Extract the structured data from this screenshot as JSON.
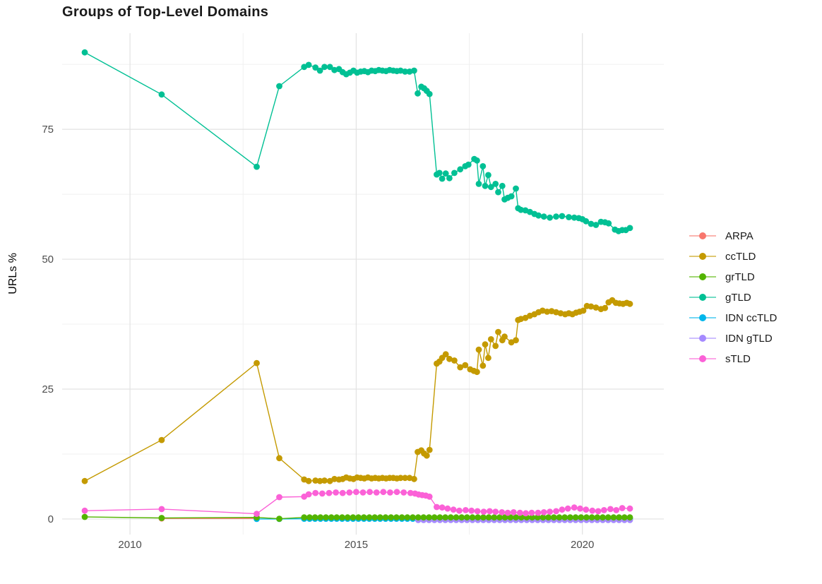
{
  "title": "Groups of Top-Level Domains",
  "colors": {
    "background": "#ffffff",
    "grid_major": "#e2e2e2",
    "grid_minor": "#f0f0f0",
    "tick_text": "#4d4d4d",
    "title_text": "#1a1a1a"
  },
  "chart_data": {
    "type": "line",
    "title": "Groups of Top-Level Domains",
    "xlabel": "",
    "ylabel": "URLs %",
    "xlim": [
      2008.5,
      2021.8
    ],
    "ylim": [
      -3,
      93.5
    ],
    "x_ticks": [
      {
        "value": 2010,
        "label": "2010"
      },
      {
        "value": 2015,
        "label": "2015"
      },
      {
        "value": 2020,
        "label": "2020"
      }
    ],
    "y_ticks": [
      {
        "value": 0,
        "label": "0"
      },
      {
        "value": 25,
        "label": "25"
      },
      {
        "value": 50,
        "label": "50"
      },
      {
        "value": 75,
        "label": "75"
      }
    ],
    "x_minor": [
      2012.5,
      2017.5
    ],
    "y_minor": [
      12.5,
      37.5,
      62.5,
      87.5
    ],
    "grid": true,
    "legend_position": "right",
    "marker_radius": 4.4,
    "line_width": 1.4,
    "draw_order": [
      "ARPA",
      "IDN ccTLD",
      "IDN gTLD",
      "ccTLD",
      "grTLD",
      "gTLD",
      "sTLD"
    ],
    "series": [
      {
        "name": "ARPA",
        "color": "#F8766D",
        "points": [
          [
            2010.7,
            0.1
          ],
          [
            2012.8,
            0.1
          ]
        ]
      },
      {
        "name": "ccTLD",
        "color": "#C49A00",
        "points": [
          [
            2009.0,
            7.3
          ],
          [
            2010.7,
            15.2
          ],
          [
            2012.8,
            30.0
          ],
          [
            2013.3,
            11.7
          ],
          [
            2013.85,
            7.6
          ],
          [
            2013.95,
            7.3
          ],
          [
            2014.1,
            7.4
          ],
          [
            2014.2,
            7.3
          ],
          [
            2014.3,
            7.4
          ],
          [
            2014.42,
            7.3
          ],
          [
            2014.52,
            7.7
          ],
          [
            2014.62,
            7.6
          ],
          [
            2014.7,
            7.7
          ],
          [
            2014.78,
            8.0
          ],
          [
            2014.86,
            7.8
          ],
          [
            2014.94,
            7.7
          ],
          [
            2015.02,
            8.0
          ],
          [
            2015.1,
            7.9
          ],
          [
            2015.18,
            7.8
          ],
          [
            2015.26,
            8.0
          ],
          [
            2015.34,
            7.8
          ],
          [
            2015.42,
            7.9
          ],
          [
            2015.5,
            7.8
          ],
          [
            2015.58,
            7.9
          ],
          [
            2015.66,
            7.8
          ],
          [
            2015.74,
            7.9
          ],
          [
            2015.82,
            7.9
          ],
          [
            2015.9,
            7.8
          ],
          [
            2015.98,
            7.9
          ],
          [
            2016.08,
            7.9
          ],
          [
            2016.18,
            7.9
          ],
          [
            2016.28,
            7.7
          ],
          [
            2016.36,
            12.9
          ],
          [
            2016.44,
            13.2
          ],
          [
            2016.5,
            12.6
          ],
          [
            2016.56,
            12.2
          ],
          [
            2016.62,
            13.3
          ],
          [
            2016.78,
            29.9
          ],
          [
            2016.84,
            30.3
          ],
          [
            2016.9,
            31.0
          ],
          [
            2016.98,
            31.7
          ],
          [
            2017.06,
            30.8
          ],
          [
            2017.17,
            30.5
          ],
          [
            2017.3,
            29.2
          ],
          [
            2017.41,
            29.6
          ],
          [
            2017.52,
            28.8
          ],
          [
            2017.6,
            28.5
          ],
          [
            2017.67,
            28.3
          ],
          [
            2017.71,
            32.6
          ],
          [
            2017.8,
            29.5
          ],
          [
            2017.85,
            33.6
          ],
          [
            2017.92,
            31.0
          ],
          [
            2017.98,
            34.6
          ],
          [
            2018.08,
            33.3
          ],
          [
            2018.14,
            36.0
          ],
          [
            2018.23,
            34.4
          ],
          [
            2018.28,
            35.1
          ],
          [
            2018.43,
            34.0
          ],
          [
            2018.53,
            34.4
          ],
          [
            2018.58,
            38.3
          ],
          [
            2018.64,
            38.5
          ],
          [
            2018.74,
            38.7
          ],
          [
            2018.84,
            39.1
          ],
          [
            2018.94,
            39.4
          ],
          [
            2019.03,
            39.8
          ],
          [
            2019.12,
            40.1
          ],
          [
            2019.22,
            39.9
          ],
          [
            2019.32,
            40.0
          ],
          [
            2019.42,
            39.8
          ],
          [
            2019.52,
            39.6
          ],
          [
            2019.62,
            39.4
          ],
          [
            2019.7,
            39.6
          ],
          [
            2019.78,
            39.4
          ],
          [
            2019.86,
            39.7
          ],
          [
            2019.94,
            39.9
          ],
          [
            2020.02,
            40.1
          ],
          [
            2020.1,
            41.0
          ],
          [
            2020.19,
            40.9
          ],
          [
            2020.3,
            40.7
          ],
          [
            2020.41,
            40.4
          ],
          [
            2020.5,
            40.6
          ],
          [
            2020.58,
            41.7
          ],
          [
            2020.66,
            42.1
          ],
          [
            2020.74,
            41.6
          ],
          [
            2020.82,
            41.5
          ],
          [
            2020.9,
            41.4
          ],
          [
            2020.98,
            41.6
          ],
          [
            2021.05,
            41.4
          ]
        ]
      },
      {
        "name": "grTLD",
        "color": "#53B400",
        "points": [
          [
            2009.0,
            0.4
          ],
          [
            2010.7,
            0.2
          ],
          [
            2012.8,
            0.3
          ],
          [
            2013.3,
            0.05
          ]
        ],
        "run": {
          "from": 2013.85,
          "to": 2021.05,
          "step": 0.12,
          "value": 0.3
        }
      },
      {
        "name": "gTLD",
        "color": "#00C094",
        "points": [
          [
            2009.0,
            89.8
          ],
          [
            2010.7,
            81.7
          ],
          [
            2012.8,
            67.8
          ],
          [
            2013.3,
            83.3
          ],
          [
            2013.85,
            87.0
          ],
          [
            2013.95,
            87.4
          ],
          [
            2014.1,
            86.9
          ],
          [
            2014.2,
            86.3
          ],
          [
            2014.3,
            87.0
          ],
          [
            2014.42,
            87.0
          ],
          [
            2014.52,
            86.4
          ],
          [
            2014.62,
            86.6
          ],
          [
            2014.7,
            86.0
          ],
          [
            2014.78,
            85.6
          ],
          [
            2014.86,
            85.9
          ],
          [
            2014.94,
            86.3
          ],
          [
            2015.02,
            85.9
          ],
          [
            2015.1,
            86.1
          ],
          [
            2015.18,
            86.2
          ],
          [
            2015.26,
            86.0
          ],
          [
            2015.34,
            86.3
          ],
          [
            2015.42,
            86.2
          ],
          [
            2015.5,
            86.4
          ],
          [
            2015.58,
            86.3
          ],
          [
            2015.66,
            86.2
          ],
          [
            2015.74,
            86.4
          ],
          [
            2015.82,
            86.3
          ],
          [
            2015.9,
            86.2
          ],
          [
            2015.98,
            86.3
          ],
          [
            2016.08,
            86.1
          ],
          [
            2016.18,
            86.1
          ],
          [
            2016.28,
            86.3
          ],
          [
            2016.36,
            81.9
          ],
          [
            2016.44,
            83.2
          ],
          [
            2016.5,
            82.9
          ],
          [
            2016.56,
            82.4
          ],
          [
            2016.62,
            81.8
          ],
          [
            2016.78,
            66.3
          ],
          [
            2016.84,
            66.6
          ],
          [
            2016.9,
            65.5
          ],
          [
            2016.98,
            66.5
          ],
          [
            2017.06,
            65.6
          ],
          [
            2017.17,
            66.6
          ],
          [
            2017.3,
            67.3
          ],
          [
            2017.41,
            67.9
          ],
          [
            2017.48,
            68.2
          ],
          [
            2017.61,
            69.3
          ],
          [
            2017.67,
            69.0
          ],
          [
            2017.71,
            64.5
          ],
          [
            2017.8,
            67.9
          ],
          [
            2017.85,
            64.1
          ],
          [
            2017.92,
            66.2
          ],
          [
            2017.98,
            63.9
          ],
          [
            2018.08,
            64.5
          ],
          [
            2018.14,
            62.9
          ],
          [
            2018.23,
            64.1
          ],
          [
            2018.28,
            61.5
          ],
          [
            2018.35,
            61.8
          ],
          [
            2018.43,
            62.1
          ],
          [
            2018.53,
            63.6
          ],
          [
            2018.58,
            59.8
          ],
          [
            2018.64,
            59.5
          ],
          [
            2018.74,
            59.4
          ],
          [
            2018.84,
            59.1
          ],
          [
            2018.94,
            58.7
          ],
          [
            2019.03,
            58.4
          ],
          [
            2019.15,
            58.2
          ],
          [
            2019.28,
            58.0
          ],
          [
            2019.42,
            58.2
          ],
          [
            2019.55,
            58.3
          ],
          [
            2019.7,
            58.1
          ],
          [
            2019.82,
            58.0
          ],
          [
            2019.92,
            57.9
          ],
          [
            2020.0,
            57.7
          ],
          [
            2020.08,
            57.3
          ],
          [
            2020.19,
            56.8
          ],
          [
            2020.3,
            56.6
          ],
          [
            2020.41,
            57.2
          ],
          [
            2020.5,
            57.1
          ],
          [
            2020.58,
            56.9
          ],
          [
            2020.72,
            55.7
          ],
          [
            2020.8,
            55.4
          ],
          [
            2020.88,
            55.6
          ],
          [
            2020.96,
            55.6
          ],
          [
            2021.05,
            56.0
          ]
        ]
      },
      {
        "name": "IDN ccTLD",
        "color": "#00B6EB",
        "points": [
          [
            2012.8,
            0.0
          ],
          [
            2013.3,
            0.0
          ]
        ],
        "run": {
          "from": 2013.85,
          "to": 2021.05,
          "step": 0.12,
          "value": 0.05
        }
      },
      {
        "name": "IDN gTLD",
        "color": "#A58AFF",
        "points": [],
        "run": {
          "from": 2016.37,
          "to": 2021.05,
          "step": 0.12,
          "value": -0.2
        }
      },
      {
        "name": "sTLD",
        "color": "#FB61D7",
        "points": [
          [
            2009.0,
            1.6
          ],
          [
            2010.7,
            1.9
          ],
          [
            2012.8,
            1.0
          ],
          [
            2013.3,
            4.2
          ],
          [
            2013.85,
            4.3
          ],
          [
            2013.95,
            4.75
          ],
          [
            2014.1,
            5.0
          ],
          [
            2014.25,
            4.9
          ],
          [
            2014.4,
            5.0
          ],
          [
            2014.55,
            5.1
          ],
          [
            2014.7,
            5.0
          ],
          [
            2014.85,
            5.1
          ],
          [
            2015.0,
            5.2
          ],
          [
            2015.15,
            5.1
          ],
          [
            2015.3,
            5.2
          ],
          [
            2015.45,
            5.1
          ],
          [
            2015.6,
            5.2
          ],
          [
            2015.75,
            5.1
          ],
          [
            2015.9,
            5.2
          ],
          [
            2016.05,
            5.1
          ],
          [
            2016.2,
            5.0
          ],
          [
            2016.3,
            4.9
          ],
          [
            2016.38,
            4.7
          ],
          [
            2016.46,
            4.6
          ],
          [
            2016.54,
            4.5
          ],
          [
            2016.62,
            4.3
          ],
          [
            2016.78,
            2.3
          ],
          [
            2016.9,
            2.2
          ],
          [
            2017.02,
            2.0
          ],
          [
            2017.15,
            1.8
          ],
          [
            2017.28,
            1.6
          ],
          [
            2017.42,
            1.7
          ],
          [
            2017.55,
            1.6
          ],
          [
            2017.68,
            1.5
          ],
          [
            2017.82,
            1.4
          ],
          [
            2017.95,
            1.5
          ],
          [
            2018.08,
            1.4
          ],
          [
            2018.22,
            1.3
          ],
          [
            2018.35,
            1.2
          ],
          [
            2018.48,
            1.3
          ],
          [
            2018.62,
            1.2
          ],
          [
            2018.75,
            1.1
          ],
          [
            2018.88,
            1.2
          ],
          [
            2019.02,
            1.2
          ],
          [
            2019.15,
            1.3
          ],
          [
            2019.28,
            1.4
          ],
          [
            2019.42,
            1.5
          ],
          [
            2019.55,
            1.8
          ],
          [
            2019.68,
            2.0
          ],
          [
            2019.82,
            2.2
          ],
          [
            2019.95,
            2.0
          ],
          [
            2020.08,
            1.8
          ],
          [
            2020.22,
            1.6
          ],
          [
            2020.35,
            1.5
          ],
          [
            2020.48,
            1.7
          ],
          [
            2020.62,
            1.9
          ],
          [
            2020.75,
            1.7
          ],
          [
            2020.88,
            2.1
          ],
          [
            2021.05,
            2.0
          ]
        ]
      }
    ]
  },
  "legend": {
    "items": [
      {
        "label": "ARPA",
        "color": "#F8766D"
      },
      {
        "label": "ccTLD",
        "color": "#C49A00"
      },
      {
        "label": "grTLD",
        "color": "#53B400"
      },
      {
        "label": "gTLD",
        "color": "#00C094"
      },
      {
        "label": "IDN ccTLD",
        "color": "#00B6EB"
      },
      {
        "label": "IDN gTLD",
        "color": "#A58AFF"
      },
      {
        "label": "sTLD",
        "color": "#FB61D7"
      }
    ]
  }
}
